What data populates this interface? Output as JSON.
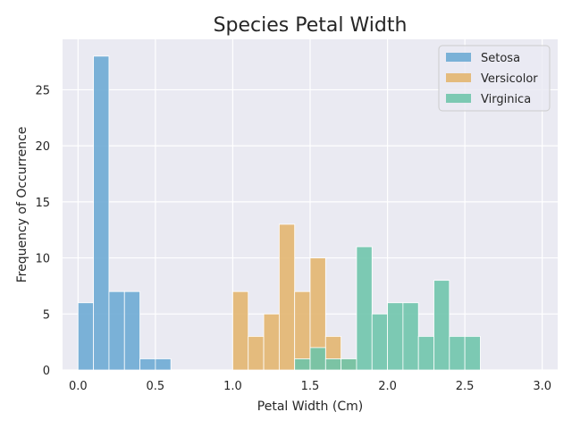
{
  "chart_data": {
    "type": "bar",
    "subtype": "histogram",
    "title": "Species Petal Width",
    "xlabel": "Petal Width (Cm)",
    "ylabel": "Frequency of Occurrence",
    "xlim": [
      -0.1,
      3.1
    ],
    "ylim": [
      0,
      29.5
    ],
    "xticks": [
      "0.0",
      "0.5",
      "1.0",
      "1.5",
      "2.0",
      "2.5",
      "3.0"
    ],
    "yticks": [
      "0",
      "5",
      "10",
      "15",
      "20",
      "25"
    ],
    "grid": true,
    "legend_position": "top-right",
    "background": "#eaeaf2",
    "bin_edges": [
      0.0,
      0.1,
      0.2,
      0.3,
      0.4,
      0.5,
      0.6,
      0.7,
      0.8,
      0.9,
      1.0,
      1.1,
      1.2,
      1.3,
      1.4,
      1.5,
      1.6,
      1.7,
      1.8,
      1.9,
      2.0,
      2.1,
      2.2,
      2.3,
      2.4,
      2.5,
      2.6,
      2.7,
      2.8,
      2.9,
      3.0
    ],
    "series": [
      {
        "name": "Setosa",
        "color": "#6aa9d3",
        "values": [
          6,
          28,
          7,
          7,
          1,
          1,
          0,
          0,
          0,
          0,
          0,
          0,
          0,
          0,
          0,
          0,
          0,
          0,
          0,
          0,
          0,
          0,
          0,
          0,
          0,
          0,
          0,
          0,
          0,
          0
        ]
      },
      {
        "name": "Versicolor",
        "color": "#e3b46c",
        "values": [
          0,
          0,
          0,
          0,
          0,
          0,
          0,
          0,
          0,
          0,
          7,
          3,
          5,
          13,
          7,
          10,
          3,
          1,
          0,
          0,
          0,
          0,
          0,
          0,
          0,
          0,
          0,
          0,
          0,
          0
        ]
      },
      {
        "name": "Virginica",
        "color": "#6cc4aa",
        "values": [
          0,
          0,
          0,
          0,
          0,
          0,
          0,
          0,
          0,
          0,
          0,
          0,
          0,
          0,
          1,
          2,
          1,
          1,
          11,
          5,
          6,
          6,
          3,
          8,
          3,
          3,
          0,
          0,
          0,
          0
        ]
      }
    ]
  }
}
